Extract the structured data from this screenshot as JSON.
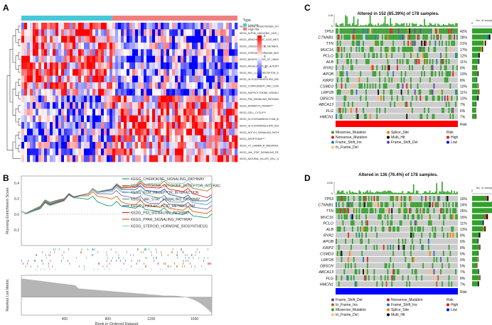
{
  "panels": {
    "A": {
      "letter": "A",
      "legend_title": "Type",
      "legend_low": "Low risk",
      "legend_high": "High risk",
      "scale_ticks": [
        "2",
        "1",
        "0",
        "-1",
        "-2"
      ],
      "pathways": [
        "KEGG_RENIN_ANGIOTENSIN_SYSTEM***",
        "KEGG_ALPHA_LINOLENIC_ACID_METABOLISM***",
        "KEGG_ARACHIDONIC_ACID_METABOLISM***",
        "KEGG_LINOLEIC_ACID_METABOLISM***",
        "KEGG_STEROID_HORMONE_BIOSYNTHESIS***",
        "KEGG_BIOSYNTHESIS_OF_UNSATURATED_FATTY_ACIDS***",
        "KEGG_REGULATION_OF_AUTOPHAGY***",
        "KEGG_RIG_I_LIKE_RECEPTOR_SIGNALING_PATHWAY***",
        "KEGG_GLYCOSPHINGOLIPID_BIOSYNTHESIS_GANGLIO_SERIES***",
        "KEGG_COMPLEMENT_AND_COAGULATION_CASCADES***",
        "KEGG_ADIPOCYTOKINE_SIGNALING_PATHWAY***",
        "KEGG_P53_SIGNALING_PATHWAY***",
        "KEGG_MISMATCH_REPAIR***",
        "KEGG_CELL_CYCLE***",
        "KEGG_GLYCOSAMINOGLYCAN_BIOSYNTHESIS_HEPARAN_SULFATE***",
        "KEGG_GLYCOSPHINGOLIPID_BIOSYNTHESIS_GLOBO_SERIES***",
        "KEGG_NOTCH_SIGNALING_PATHWAY***",
        "KEGG_APOPTOSIS***",
        "KEGG_FC_GAMMA_R_MEDIATED_PHAGOCYTOSIS***",
        "KEGG_JAK_STAT_SIGNALING_PATHWAY***",
        "KEGG_NATURAL_KILLER_CELL_MEDIATED_CYTOTOXICITY***"
      ]
    },
    "B": {
      "letter": "B",
      "ylabel_top": "Running Enrichment Score",
      "ylabel_bottom": "Ranked List Metric",
      "xlabel": "Rank in Ordered Dataset",
      "yticks": [
        "0.4",
        "0.2",
        "0.0",
        "-0.2"
      ],
      "xticks": [
        "400",
        "800",
        "1200",
        "1600"
      ],
      "pathways": [
        {
          "name": "KEGG_CHEMOKINE_SIGNALING_PATHWAY",
          "color": "#1b9e77"
        },
        {
          "name": "KEGG_CYTOKINE_CYTOKINE_RECEPTOR_INTERAC",
          "color": "#d95f02"
        },
        {
          "name": "KEGG_ECM_RECEPTOR_INTERACTION",
          "color": "#7570b3"
        },
        {
          "name": "KEGG_JAK_STAT_SIGNALING_PATHWAY",
          "color": "#4fa3a5"
        },
        {
          "name": "KEGG_LINOLEIC_ACID_METABOLISM",
          "color": "#2b5fad"
        },
        {
          "name": "KEGG_P53_SIGNALING_PATHWAY",
          "color": "#d62728"
        },
        {
          "name": "KEGG_PPAR_SIGNALING_PATHWAY",
          "color": "#a6761d"
        },
        {
          "name": "KEGG_STEROID_HORMONE_BIOSYNTHESIS",
          "color": "#8dd3c7"
        }
      ]
    },
    "C": {
      "letter": "C",
      "title": "Altered in 152 (85.39%) of 178 samples.",
      "tmb_max": "148",
      "tmb_min": "0",
      "nsamples_axis": [
        "0",
        "74"
      ],
      "nsamples_label": "No. of samples",
      "genes": [
        "TP53",
        "CTNNB1",
        "TTN",
        "MUC16",
        "PCLO",
        "ALB",
        "RYR2",
        "APOB",
        "XIRP2",
        "CSMD3",
        "LRP1B",
        "OBSCN",
        "ABCA13",
        "FLG",
        "HMCN1"
      ],
      "pcts": [
        "42%",
        "28%",
        "21%",
        "17%",
        "12%",
        "11%",
        "8%",
        "10%",
        "8%",
        "10%",
        "11%",
        "10%",
        "7%",
        "6%",
        "7%"
      ],
      "counts": [
        74,
        50,
        38,
        30,
        21,
        20,
        14,
        18,
        14,
        18,
        20,
        18,
        12,
        11,
        12
      ],
      "risk_label": "Risk",
      "legend_items": [
        {
          "label": "Missense_Mutation",
          "color": "#33a02c"
        },
        {
          "label": "Nonsense_Mutation",
          "color": "#e31a1c"
        },
        {
          "label": "Frame_Shift_Ins",
          "color": "#1f78b4"
        },
        {
          "label": "In_Frame_Del",
          "color": "#fdbf6f"
        },
        {
          "label": "Splice_Site",
          "color": "#ff7f00"
        },
        {
          "label": "Multi_Hit",
          "color": "#000000"
        },
        {
          "label": "Frame_Shift_Del",
          "color": "#6a3d9a"
        }
      ],
      "risk_title": "Risk",
      "risk_high": "High",
      "risk_low": "Low",
      "risk_color": "#ff0000"
    },
    "D": {
      "letter": "D",
      "title": "Altered in 136 (76.4%) of 178 samples.",
      "tmb_max": "1196",
      "tmb_min": "0",
      "nsamples_axis": [
        "0",
        "46"
      ],
      "nsamples_label": "No. of samples",
      "genes": [
        "TP53",
        "CTNNB1",
        "TTN",
        "MUC16",
        "PCLO",
        "ALB",
        "RYR2",
        "APOB",
        "XIRP2",
        "CSMD3",
        "LRP1B",
        "OBSCN",
        "ABCA13",
        "FLG",
        "HMCN1"
      ],
      "pcts": [
        "16%",
        "24%",
        "26%",
        "15%",
        "11%",
        "13%",
        "8%",
        "6%",
        "8%",
        "6%",
        "6%",
        "5%",
        "7%",
        "8%",
        "7%"
      ],
      "counts": [
        28,
        43,
        46,
        27,
        20,
        23,
        14,
        11,
        14,
        11,
        11,
        9,
        12,
        14,
        12
      ],
      "risk_label": "Risk",
      "legend_items": [
        {
          "label": "Frame_Shift_Del",
          "color": "#6a3d9a"
        },
        {
          "label": "In_Frame_Ins",
          "color": "#b15928"
        },
        {
          "label": "Missense_Mutation",
          "color": "#33a02c"
        },
        {
          "label": "In_Frame_Del",
          "color": "#fdbf6f"
        },
        {
          "label": "Nonsense_Mutation",
          "color": "#e31a1c"
        },
        {
          "label": "Frame_Shift_Ins",
          "color": "#1f78b4"
        },
        {
          "label": "Splice_Site",
          "color": "#ff7f00"
        },
        {
          "label": "Multi_Hit",
          "color": "#000000"
        }
      ],
      "risk_title": "Risk",
      "risk_high": "High",
      "risk_low": "Low",
      "risk_color": "#0000ff"
    }
  }
}
